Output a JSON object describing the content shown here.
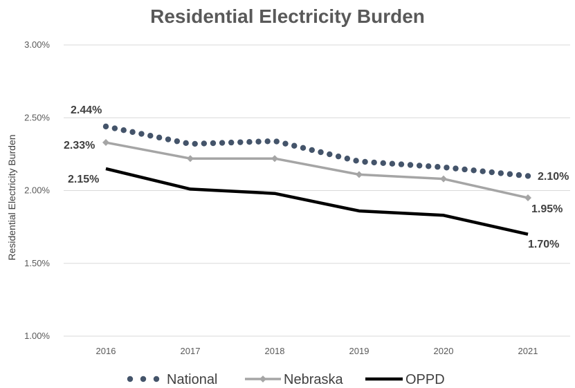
{
  "chart_data": {
    "type": "line",
    "title": "Residential Electricity Burden",
    "ylabel": "Residential Electricity Burden",
    "xlabel": "",
    "categories": [
      "2016",
      "2017",
      "2018",
      "2019",
      "2020",
      "2021"
    ],
    "ylim": [
      0.01,
      0.03
    ],
    "yticks": [
      "1.00%",
      "1.50%",
      "2.00%",
      "2.50%",
      "3.00%"
    ],
    "ytick_values": [
      0.01,
      0.015,
      0.02,
      0.025,
      0.03
    ],
    "grid": "horizontal",
    "legend_position": "bottom",
    "series": [
      {
        "name": "National",
        "values": [
          0.0244,
          0.0232,
          0.0234,
          0.022,
          0.0216,
          0.021
        ],
        "color": "#44546a",
        "style": "dotted",
        "labels": {
          "0": "2.44%",
          "5": "2.10%"
        }
      },
      {
        "name": "Nebraska",
        "values": [
          0.0233,
          0.0222,
          0.0222,
          0.0211,
          0.0208,
          0.0195
        ],
        "color": "#a5a5a5",
        "style": "solid-diamond",
        "labels": {
          "0": "2.33%",
          "5": "1.95%"
        }
      },
      {
        "name": "OPPD",
        "values": [
          0.0215,
          0.0201,
          0.0198,
          0.0186,
          0.0183,
          0.017
        ],
        "color": "#000000",
        "style": "solid-thick",
        "labels": {
          "0": "2.15%",
          "5": "1.70%"
        }
      }
    ]
  }
}
